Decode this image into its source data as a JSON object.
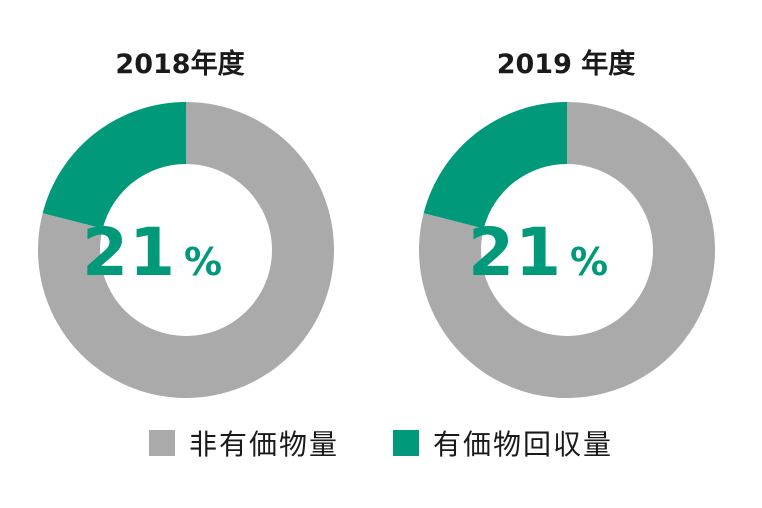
{
  "chart_data": [
    {
      "type": "pie",
      "title": "2018年度",
      "center_value": "21",
      "center_unit": "%",
      "slices": [
        {
          "name": "有価物回収量",
          "value": 21
        },
        {
          "name": "非有価物量",
          "value": 79
        }
      ]
    },
    {
      "type": "pie",
      "title": "2019 年度",
      "center_value": "21",
      "center_unit": "%",
      "slices": [
        {
          "name": "有価物回収量",
          "value": 21
        },
        {
          "name": "非有価物量",
          "value": 79
        }
      ]
    }
  ],
  "legend": [
    {
      "label": "非有価物量",
      "color": "#aaaaaa"
    },
    {
      "label": "有価物回収量",
      "color": "#00997a"
    }
  ],
  "colors": {
    "有価物回収量": "#00997a",
    "非有価物量": "#aaaaaa",
    "center_text": "#00997a"
  }
}
